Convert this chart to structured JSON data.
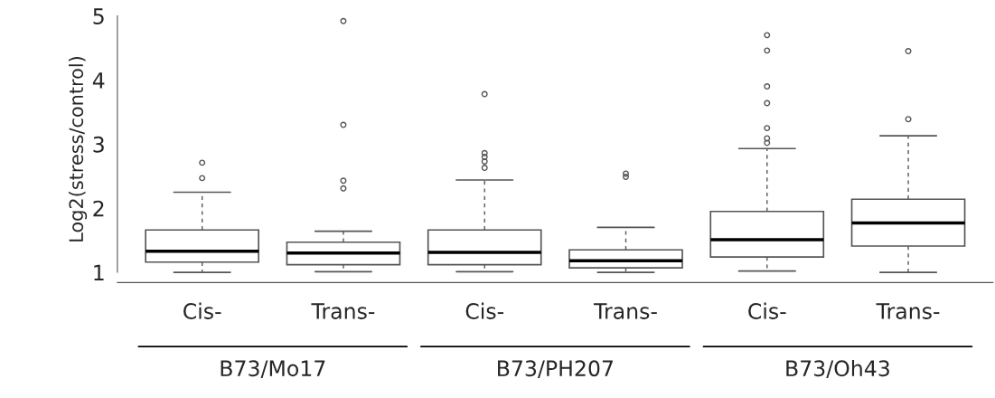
{
  "chart_data": {
    "type": "box",
    "ylabel": "Log2(stress/control)",
    "categories": [
      "Cis-",
      "Trans-",
      "Cis-",
      "Trans-",
      "Cis-",
      "Trans-"
    ],
    "boxes": [
      {
        "low": 1.0,
        "q1": 1.16,
        "median": 1.33,
        "q3": 1.66,
        "high": 2.25,
        "outliers": [
          2.71,
          2.47
        ]
      },
      {
        "low": 1.01,
        "q1": 1.12,
        "median": 1.3,
        "q3": 1.47,
        "high": 1.64,
        "outliers": [
          4.92,
          3.3,
          2.43,
          2.31
        ]
      },
      {
        "low": 1.01,
        "q1": 1.12,
        "median": 1.31,
        "q3": 1.66,
        "high": 2.44,
        "outliers": [
          3.78,
          2.86,
          2.8,
          2.73,
          2.63
        ]
      },
      {
        "low": 1.0,
        "q1": 1.07,
        "median": 1.18,
        "q3": 1.35,
        "high": 1.7,
        "outliers": [
          2.54,
          2.49
        ]
      },
      {
        "low": 1.02,
        "q1": 1.24,
        "median": 1.51,
        "q3": 1.95,
        "high": 2.93,
        "outliers": [
          4.7,
          4.46,
          3.9,
          3.64,
          3.25,
          3.09,
          3.02
        ]
      },
      {
        "low": 1.0,
        "q1": 1.41,
        "median": 1.77,
        "q3": 2.14,
        "high": 3.13,
        "outliers": [
          4.45,
          3.39
        ]
      }
    ],
    "color": "#555555",
    "ylim": [
      0.84,
      5.0
    ],
    "yticks": [
      1,
      2,
      3,
      4,
      5
    ],
    "annotations": [
      "B73/Mo17",
      "B73/PH207",
      "B73/Oh43"
    ],
    "grid": false,
    "legend": false
  }
}
